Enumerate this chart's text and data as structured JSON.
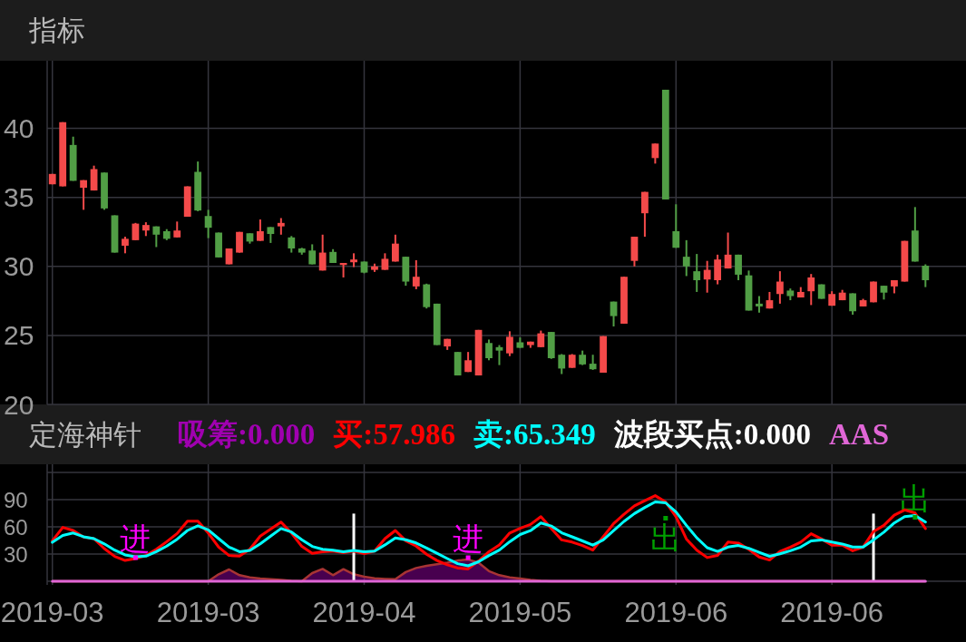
{
  "chart_data": [
    {
      "type": "candlestick",
      "title": "指标",
      "categories": [
        "2019-03",
        null,
        null,
        null,
        null,
        null,
        null,
        null,
        null,
        null,
        null,
        null,
        null,
        null,
        null,
        "2019-03",
        null,
        null,
        null,
        null,
        null,
        null,
        null,
        null,
        null,
        null,
        null,
        null,
        null,
        null,
        "2019-04",
        null,
        null,
        null,
        null,
        null,
        null,
        null,
        null,
        null,
        null,
        null,
        null,
        null,
        null,
        "2019-05",
        null,
        null,
        null,
        null,
        null,
        null,
        null,
        null,
        null,
        null,
        null,
        null,
        null,
        null,
        "2019-06",
        null,
        null,
        null,
        null,
        null,
        null,
        null,
        null,
        null,
        null,
        null,
        null,
        null,
        null,
        "2019-06",
        null,
        null,
        null,
        null,
        null,
        null,
        null,
        null,
        null
      ],
      "ohlc": [
        [
          35.95,
          36.7,
          35.95,
          36.7
        ],
        [
          35.8,
          40.45,
          35.8,
          40.45
        ],
        [
          38.8,
          39.4,
          36.2,
          36.2
        ],
        [
          35.7,
          36.25,
          34.1,
          36.25
        ],
        [
          35.5,
          37.3,
          35.5,
          37.05
        ],
        [
          36.8,
          36.8,
          34.1,
          34.2
        ],
        [
          33.7,
          33.7,
          31.0,
          31.0
        ],
        [
          31.5,
          32.15,
          30.95,
          32.0
        ],
        [
          31.9,
          33.15,
          31.9,
          33.1
        ],
        [
          32.6,
          33.2,
          32.2,
          33.0
        ],
        [
          32.9,
          32.9,
          31.4,
          32.3
        ],
        [
          32.55,
          32.7,
          31.9,
          32.0
        ],
        [
          32.1,
          33.25,
          32.1,
          32.6
        ],
        [
          33.6,
          35.8,
          33.6,
          35.8
        ],
        [
          36.85,
          37.6,
          34.0,
          34.05
        ],
        [
          33.65,
          34.1,
          32.05,
          32.8
        ],
        [
          32.45,
          32.45,
          30.65,
          30.65
        ],
        [
          30.15,
          31.3,
          30.15,
          31.3
        ],
        [
          31.0,
          32.5,
          31.0,
          32.5
        ],
        [
          32.4,
          32.4,
          31.65,
          31.8
        ],
        [
          31.85,
          33.4,
          31.85,
          32.55
        ],
        [
          32.85,
          32.85,
          31.7,
          32.35
        ],
        [
          32.9,
          33.5,
          32.3,
          33.15
        ],
        [
          32.1,
          32.2,
          31.0,
          31.3
        ],
        [
          31.3,
          31.35,
          30.85,
          31.0
        ],
        [
          31.15,
          31.6,
          30.15,
          30.15
        ],
        [
          29.7,
          32.3,
          29.7,
          31.0
        ],
        [
          31.05,
          31.25,
          30.25,
          30.25
        ],
        [
          30.1,
          30.25,
          29.2,
          30.25
        ],
        [
          30.3,
          30.95,
          29.95,
          30.5
        ],
        [
          30.35,
          30.35,
          29.5,
          29.55
        ],
        [
          29.75,
          30.2,
          29.6,
          30.0
        ],
        [
          29.75,
          30.95,
          29.75,
          30.55
        ],
        [
          30.35,
          32.3,
          30.35,
          31.65
        ],
        [
          30.7,
          30.7,
          28.6,
          28.9
        ],
        [
          28.55,
          30.45,
          28.35,
          29.25
        ],
        [
          28.7,
          28.75,
          26.95,
          27.05
        ],
        [
          27.3,
          27.3,
          24.3,
          24.3
        ],
        [
          24.2,
          24.75,
          23.95,
          24.75
        ],
        [
          23.8,
          23.8,
          22.1,
          22.1
        ],
        [
          22.35,
          23.8,
          22.35,
          23.2
        ],
        [
          22.1,
          25.4,
          22.1,
          25.4
        ],
        [
          24.45,
          24.7,
          23.2,
          23.35
        ],
        [
          24.15,
          24.3,
          22.85,
          23.9
        ],
        [
          23.7,
          25.3,
          23.5,
          24.9
        ],
        [
          24.5,
          24.85,
          24.1,
          24.1
        ],
        [
          24.3,
          24.55,
          24.1,
          24.55
        ],
        [
          24.15,
          25.35,
          24.15,
          25.15
        ],
        [
          25.25,
          25.25,
          23.3,
          23.35
        ],
        [
          23.6,
          23.65,
          22.2,
          22.6
        ],
        [
          22.65,
          23.65,
          22.65,
          23.6
        ],
        [
          23.6,
          23.9,
          22.85,
          22.9
        ],
        [
          22.95,
          23.6,
          22.5,
          22.55
        ],
        [
          22.3,
          24.95,
          22.3,
          24.95
        ],
        [
          27.45,
          27.45,
          25.65,
          26.4
        ],
        [
          25.85,
          29.25,
          25.85,
          29.25
        ],
        [
          30.4,
          32.15,
          30.0,
          32.15
        ],
        [
          33.85,
          35.4,
          32.15,
          35.4
        ],
        [
          37.85,
          38.9,
          37.45,
          38.9
        ],
        [
          42.8,
          42.8,
          34.85,
          34.85
        ],
        [
          32.55,
          34.5,
          31.35,
          31.35
        ],
        [
          30.7,
          31.9,
          29.3,
          30.0
        ],
        [
          29.65,
          30.9,
          28.15,
          29.0
        ],
        [
          29.05,
          30.4,
          28.1,
          29.75
        ],
        [
          29.0,
          30.85,
          28.7,
          30.5
        ],
        [
          29.85,
          32.45,
          29.85,
          30.85
        ],
        [
          30.85,
          30.85,
          29.0,
          29.4
        ],
        [
          29.35,
          29.7,
          26.8,
          26.8
        ],
        [
          27.3,
          27.85,
          26.65,
          27.1
        ],
        [
          26.95,
          28.15,
          26.95,
          27.55
        ],
        [
          28.0,
          29.65,
          27.3,
          28.9
        ],
        [
          28.25,
          28.4,
          27.55,
          27.85
        ],
        [
          27.75,
          28.5,
          27.75,
          28.15
        ],
        [
          28.2,
          29.45,
          27.2,
          29.2
        ],
        [
          28.7,
          28.7,
          27.65,
          27.65
        ],
        [
          27.15,
          28.2,
          27.15,
          28.0
        ],
        [
          27.55,
          28.3,
          27.55,
          28.1
        ],
        [
          28.05,
          28.05,
          26.5,
          26.75
        ],
        [
          27.1,
          27.65,
          27.1,
          27.55
        ],
        [
          27.4,
          28.9,
          27.4,
          28.9
        ],
        [
          28.6,
          28.6,
          27.6,
          28.1
        ],
        [
          28.55,
          29.0,
          28.05,
          29.0
        ],
        [
          28.9,
          31.85,
          28.9,
          31.85
        ],
        [
          32.6,
          34.3,
          30.35,
          30.35
        ],
        [
          30.05,
          30.15,
          28.5,
          29.0
        ]
      ],
      "ylim": [
        20,
        44.9
      ],
      "yticks": [
        20,
        25,
        30,
        35,
        40
      ],
      "grid": true,
      "tick_labels": "y"
    },
    {
      "type": "line",
      "title": "定海神针",
      "categories": [
        "2019-03",
        null,
        null,
        null,
        null,
        null,
        null,
        null,
        null,
        null,
        null,
        null,
        null,
        null,
        null,
        "2019-03",
        null,
        null,
        null,
        null,
        null,
        null,
        null,
        null,
        null,
        null,
        null,
        null,
        null,
        null,
        "2019-04",
        null,
        null,
        null,
        null,
        null,
        null,
        null,
        null,
        null,
        null,
        null,
        null,
        null,
        null,
        "2019-05",
        null,
        null,
        null,
        null,
        null,
        null,
        null,
        null,
        null,
        null,
        null,
        null,
        null,
        null,
        "2019-06",
        null,
        null,
        null,
        null,
        null,
        null,
        null,
        null,
        null,
        null,
        null,
        null,
        null,
        null,
        "2019-06",
        null,
        null,
        null,
        null,
        null,
        null,
        null,
        null,
        null
      ],
      "ylim": [
        -4,
        129
      ],
      "yticks": [
        {
          "value": 0,
          "label": null
        },
        30,
        60,
        90,
        {
          "value": 120,
          "label": null
        }
      ],
      "grid": true,
      "legend": "top",
      "series": [
        {
          "name": "吸筹:0.000",
          "type": "area",
          "color": "#a000b0",
          "values": [
            0,
            0,
            0,
            0,
            0,
            0,
            0,
            0,
            0,
            0,
            0,
            0,
            0,
            0,
            0,
            0,
            7.7,
            13,
            6.7,
            4.3,
            2.9,
            2.2,
            1.5,
            0.5,
            0,
            9,
            13.6,
            6.7,
            13.3,
            7.7,
            5,
            3.2,
            2.6,
            2.2,
            10.1,
            14.6,
            17,
            18.8,
            20.5,
            22.9,
            23.9,
            20.5,
            11.2,
            6.7,
            4.3,
            2.9,
            1.5,
            0.5,
            0,
            0,
            0,
            0,
            0,
            0,
            0,
            0,
            0,
            0,
            0,
            0,
            0,
            0,
            0,
            0,
            0,
            0,
            0,
            0,
            0,
            0,
            0,
            0,
            0,
            0,
            0,
            0,
            0,
            0,
            0,
            0,
            0,
            0,
            0,
            0,
            0
          ]
        },
        {
          "name": "买:57.986",
          "type": "line",
          "color": "#ff0000",
          "values": [
            44.6,
            59.4,
            56,
            48.8,
            47,
            36,
            27.4,
            22.9,
            25,
            28.4,
            35.3,
            43.6,
            52.6,
            66.3,
            66.3,
            53.2,
            37.7,
            28.4,
            27.7,
            35.3,
            49.8,
            57.4,
            65.3,
            53.2,
            38.4,
            30.8,
            32.6,
            33.2,
            31.5,
            33.2,
            30.5,
            33.2,
            47,
            56,
            44.6,
            38.8,
            29.8,
            22.9,
            18.1,
            14.6,
            13.6,
            22.2,
            32.6,
            40.1,
            53.2,
            58.4,
            62.6,
            71.2,
            58.2,
            45.6,
            43.2,
            39.4,
            34.3,
            49,
            63.6,
            73.9,
            83.1,
            88.9,
            94.4,
            87.5,
            71.2,
            46.6,
            34.3,
            26.1,
            28.5,
            43.2,
            42.1,
            35.3,
            26.8,
            23.4,
            32.9,
            37.7,
            43.2,
            52.4,
            46.6,
            39.8,
            39.8,
            33.6,
            37.7,
            54.8,
            61.6,
            72.9,
            78.7,
            75.2,
            57.986
          ]
        },
        {
          "name": "卖:65.349",
          "type": "line",
          "color": "#00ffff",
          "values": [
            42.9,
            50.5,
            53.2,
            49.1,
            47,
            41.2,
            34.3,
            29.1,
            27,
            27.7,
            32.6,
            38.8,
            46.3,
            56,
            61.2,
            56.7,
            47,
            37.7,
            32.6,
            33.9,
            41.2,
            49.8,
            58.1,
            54.3,
            45.7,
            38.4,
            35.3,
            34.3,
            32.6,
            33.9,
            32.6,
            33.2,
            40.1,
            47.7,
            45.7,
            42.2,
            36.7,
            30.8,
            25,
            19.4,
            17,
            21.5,
            28.4,
            34.3,
            43.6,
            51.5,
            55.8,
            64.3,
            60.9,
            53.4,
            49,
            44.5,
            39.8,
            45.6,
            55.8,
            66,
            74.6,
            81.4,
            87.5,
            86.5,
            76.3,
            61.6,
            47.9,
            37,
            32.9,
            37.7,
            39.4,
            36.3,
            31.9,
            27.5,
            30.2,
            33.6,
            37.7,
            44.5,
            45.6,
            43.2,
            41.1,
            37.7,
            37.7,
            45.6,
            54.1,
            64.3,
            71.2,
            72.5,
            65.349
          ]
        },
        {
          "name": "波段买点:0.000",
          "type": "bar",
          "color": "#ffffff",
          "values": [
            0,
            0,
            0,
            0,
            0,
            0,
            0,
            0,
            0,
            0,
            0,
            0,
            0,
            0,
            0,
            0,
            0,
            0,
            0,
            0,
            0,
            0,
            0,
            0,
            0,
            0,
            0,
            0,
            0,
            74.6,
            0,
            0,
            0,
            0,
            0,
            0,
            0,
            0,
            0,
            0,
            0,
            0,
            0,
            0,
            0,
            0,
            0,
            0,
            0,
            0,
            0,
            0,
            0,
            0,
            0,
            0,
            0,
            0,
            0,
            0,
            0,
            0,
            0,
            0,
            0,
            0,
            0,
            0,
            0,
            0,
            0,
            0,
            0,
            0,
            0,
            0,
            0,
            0,
            0,
            74.6,
            0,
            0,
            0,
            0,
            0
          ]
        },
        {
          "name": "AAS",
          "type": "line",
          "color": "#e066d6",
          "values": [
            0,
            0,
            0,
            0,
            0,
            0,
            0,
            0,
            0,
            0,
            0,
            0,
            0,
            0,
            0,
            0,
            0,
            0,
            0,
            0,
            0,
            0,
            0,
            0,
            0,
            0,
            0,
            0,
            0,
            0,
            0,
            0,
            0,
            0,
            0,
            0,
            0,
            0,
            0,
            0,
            0,
            0,
            0,
            0,
            0,
            0,
            0,
            0,
            0,
            0,
            0,
            0,
            0,
            0,
            0,
            0,
            0,
            0,
            0,
            0,
            0,
            0,
            0,
            0,
            0,
            0,
            0,
            0,
            0,
            0,
            0,
            0,
            0,
            0,
            0,
            0,
            0,
            0,
            0,
            0,
            0,
            0,
            0,
            0,
            0
          ]
        },
        {
          "type": "scatter",
          "color": "#ff00ff",
          "marker": "square",
          "values": [
            null,
            null,
            null,
            null,
            null,
            null,
            null,
            null,
            26,
            null,
            null,
            null,
            null,
            null,
            null,
            null,
            null,
            null,
            null,
            null,
            null,
            null,
            null,
            null,
            null,
            null,
            null,
            null,
            null,
            null,
            null,
            null,
            null,
            null,
            null,
            null,
            null,
            null,
            null,
            null,
            26,
            null,
            null,
            null,
            null,
            null,
            null,
            null,
            null,
            null,
            null,
            null,
            null,
            null,
            null,
            null,
            null,
            null,
            null,
            null,
            null,
            null,
            null,
            null,
            null,
            null,
            null,
            null,
            null,
            null,
            null,
            null,
            null,
            null,
            null,
            null,
            null,
            null,
            null,
            null,
            null,
            null,
            null,
            null,
            null
          ],
          "value_labels": [
            null,
            null,
            null,
            null,
            null,
            null,
            null,
            null,
            "进",
            null,
            null,
            null,
            null,
            null,
            null,
            null,
            null,
            null,
            null,
            null,
            null,
            null,
            null,
            null,
            null,
            null,
            null,
            null,
            null,
            null,
            null,
            null,
            null,
            null,
            null,
            null,
            null,
            null,
            null,
            null,
            "进",
            null,
            null,
            null,
            null,
            null,
            null,
            null,
            null,
            null,
            null,
            null,
            null,
            null,
            null,
            null,
            null,
            null,
            null,
            null,
            null,
            null,
            null,
            null,
            null,
            null,
            null,
            null,
            null,
            null,
            null,
            null,
            null,
            null,
            null,
            null,
            null,
            null,
            null,
            null,
            null,
            null,
            null,
            null,
            null
          ]
        },
        {
          "type": "scatter",
          "color": "#00a000",
          "marker": "square",
          "values": [
            null,
            null,
            null,
            null,
            null,
            null,
            null,
            null,
            null,
            null,
            null,
            null,
            null,
            null,
            null,
            null,
            null,
            null,
            null,
            null,
            null,
            null,
            null,
            null,
            null,
            null,
            null,
            null,
            null,
            null,
            null,
            null,
            null,
            null,
            null,
            null,
            null,
            null,
            null,
            null,
            null,
            null,
            null,
            null,
            null,
            null,
            null,
            null,
            null,
            null,
            null,
            null,
            null,
            null,
            null,
            null,
            null,
            null,
            null,
            69.5,
            null,
            null,
            null,
            null,
            null,
            null,
            null,
            null,
            null,
            null,
            null,
            null,
            null,
            null,
            null,
            null,
            null,
            null,
            null,
            null,
            null,
            null,
            null,
            70.5,
            null
          ],
          "value_labels": [
            null,
            null,
            null,
            null,
            null,
            null,
            null,
            null,
            null,
            null,
            null,
            null,
            null,
            null,
            null,
            null,
            null,
            null,
            null,
            null,
            null,
            null,
            null,
            null,
            null,
            null,
            null,
            null,
            null,
            null,
            null,
            null,
            null,
            null,
            null,
            null,
            null,
            null,
            null,
            null,
            null,
            null,
            null,
            null,
            null,
            null,
            null,
            null,
            null,
            null,
            null,
            null,
            null,
            null,
            null,
            null,
            null,
            null,
            null,
            "出",
            null,
            null,
            null,
            null,
            null,
            null,
            null,
            null,
            null,
            null,
            null,
            null,
            null,
            null,
            null,
            null,
            null,
            null,
            null,
            null,
            null,
            null,
            null,
            "出",
            null
          ]
        }
      ]
    }
  ]
}
